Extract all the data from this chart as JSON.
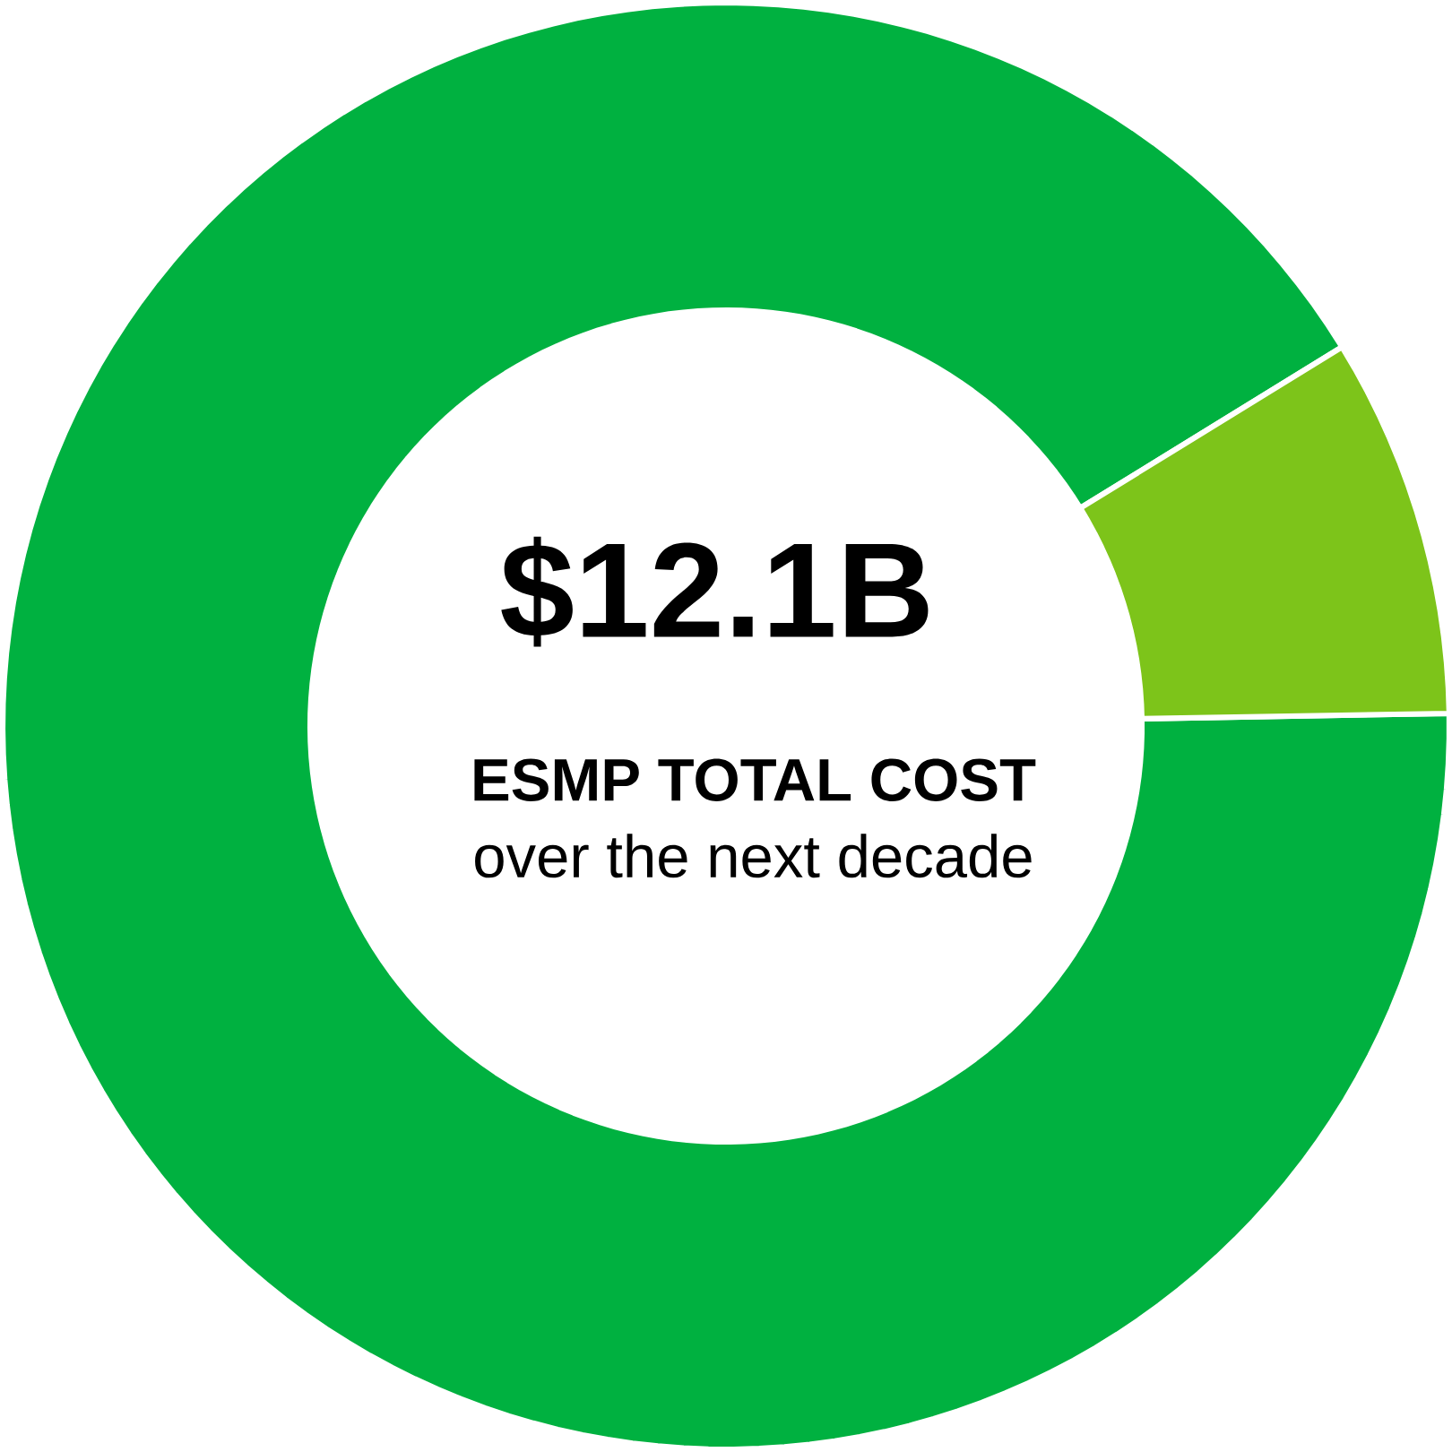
{
  "chart_data": {
    "type": "donut",
    "title": "$12.1B",
    "subtitle": "ESMP TOTAL COST",
    "annotations": [
      "over the next decade"
    ],
    "categories": [
      null,
      null
    ],
    "values": [
      91.5,
      8.5
    ],
    "colors": [
      "#00b140",
      "#7dc41a"
    ]
  }
}
